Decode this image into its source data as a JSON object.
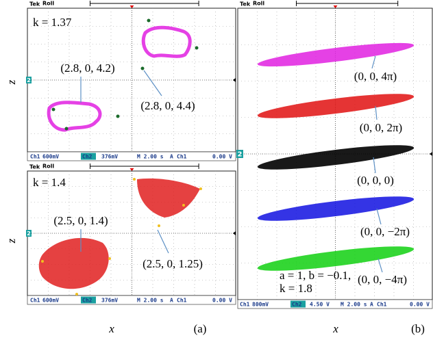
{
  "panels": [
    {
      "header": {
        "brand": "Tek",
        "mode": "Roll"
      },
      "label": "k = 1.37",
      "annotations": [
        "(2.8, 0, 4.2)",
        "(2.8, 0, 4.4)"
      ],
      "channel_marker": "2",
      "status": {
        "ch1": "Ch1",
        "ch1_scale": "600mV",
        "ch2": "Ch2",
        "ch2_scale": "376mV",
        "time": "M 2.00 s",
        "trigger": "A",
        "trigger_source": "Ch1",
        "trigger_level": "0.00 V"
      }
    },
    {
      "header": {
        "brand": "Tek",
        "mode": "Roll"
      },
      "label": "k = 1.4",
      "annotations": [
        "(2.5, 0, 1.4)",
        "(2.5, 0, 1.25)"
      ],
      "channel_marker": "2",
      "status": {
        "ch1": "Ch1",
        "ch1_scale": "600mV",
        "ch2": "Ch2",
        "ch2_scale": "376mV",
        "time": "M 2.00 s",
        "trigger": "A",
        "trigger_source": "Ch1",
        "trigger_level": "0.00 V"
      }
    },
    {
      "header": {
        "brand": "Tek",
        "mode": "Roll"
      },
      "label_lines": [
        "a = 1, b = −0.1,",
        "k = 1.8"
      ],
      "annotations": [
        "(0, 0, 4π)",
        "(0, 0, 2π)",
        "(0, 0, 0)",
        "(0, 0, −2π)",
        "(0, 0, −4π)"
      ],
      "channel_marker": "2",
      "status": {
        "ch1": "Ch1",
        "ch1_scale": "800mV",
        "ch2": "Ch2",
        "ch2_scale": "4.50 V",
        "time": "M 2.00 s",
        "trigger": "A",
        "trigger_source": "Ch1",
        "trigger_level": "0.00 V"
      }
    }
  ],
  "axis_labels": {
    "z_upper": "z",
    "z_lower": "z",
    "x_a": "x",
    "x_b": "x"
  },
  "captions": [
    "(a)",
    "(b)"
  ]
}
